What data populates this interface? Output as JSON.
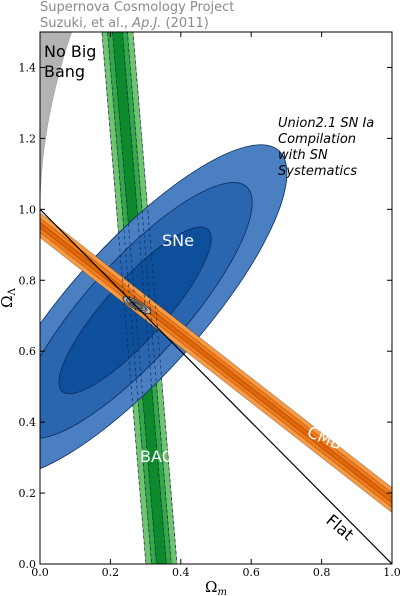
{
  "credit": {
    "line1": "Supernova Cosmology Project",
    "line2_prefix": "Suzuki, et al., ",
    "line2_journal": "Ap.J.",
    "line2_suffix": " (2011)"
  },
  "chart_data": {
    "type": "contour",
    "xlabel": "Ω",
    "xlabel_sub": "m",
    "ylabel": "Ω",
    "ylabel_sub": "Λ",
    "xlim": [
      0.0,
      1.0
    ],
    "ylim": [
      0.0,
      1.5
    ],
    "x_ticks": [
      "0.0",
      "0.2",
      "0.4",
      "0.6",
      "0.8",
      "1.0"
    ],
    "y_ticks": [
      "0.0",
      "0.2",
      "0.4",
      "0.6",
      "0.8",
      "1.0",
      "1.2",
      "1.4"
    ],
    "grid": false,
    "colors": {
      "sne": [
        "#4a7fc1",
        "#2a65b0",
        "#0d4f9a"
      ],
      "bao": [
        "#6fc56f",
        "#33a848",
        "#0d8a2b"
      ],
      "cmb": [
        "#f79a43",
        "#f57a18",
        "#e0660a"
      ],
      "combined": [
        "#bdbdbd",
        "#9a9a9a",
        "#7a7a7a"
      ],
      "no_big_bang": "#b3b3b3"
    },
    "series": [
      {
        "name": "SNe",
        "kind": "ellipse",
        "center": [
          0.27,
          0.715
        ],
        "angle_deg": 48,
        "semi_major": [
          0.36,
          0.55,
          0.71
        ],
        "semi_minor": [
          0.097,
          0.16,
          0.215
        ]
      },
      {
        "name": "BAO",
        "kind": "band",
        "points_center": [
          [
            0.22,
            1.5
          ],
          [
            0.345,
            0.0
          ]
        ],
        "half_widths": [
          0.014,
          0.028,
          0.044
        ]
      },
      {
        "name": "CMB",
        "kind": "band",
        "points_center": [
          [
            0.02,
            0.94
          ],
          [
            1.0,
            0.18
          ]
        ],
        "half_widths": [
          0.006,
          0.016,
          0.028
        ]
      },
      {
        "name": "combined",
        "kind": "ellipse",
        "center": [
          0.275,
          0.73
        ],
        "angle_deg": -28,
        "semi_major": [
          0.022,
          0.038,
          0.052
        ],
        "semi_minor": [
          0.006,
          0.01,
          0.014
        ]
      }
    ],
    "flat_line": {
      "from": [
        0.0,
        1.0
      ],
      "to": [
        1.0,
        0.0
      ]
    },
    "annotations": {
      "no_big_bang": [
        "No Big",
        "Bang"
      ],
      "sne": "SNe",
      "bao": "BAO",
      "cmb": "CMB",
      "flat": "Flat",
      "compilation": [
        "Union2.1 SN Ia",
        "Compilation",
        "with SN",
        "Systematics"
      ]
    }
  }
}
